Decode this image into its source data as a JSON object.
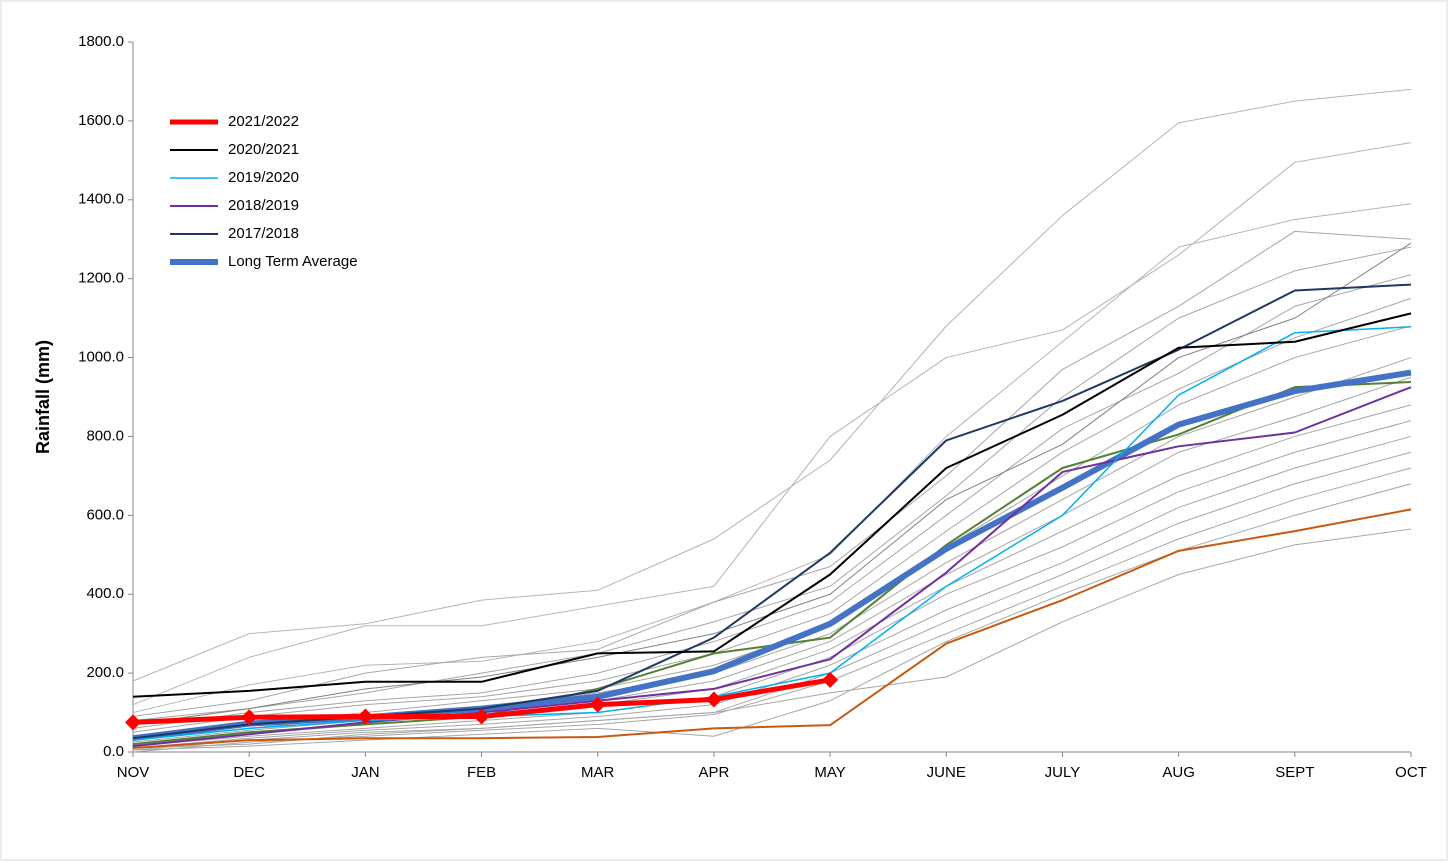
{
  "chart_data": {
    "type": "line",
    "y_label": "Rainfall (mm)",
    "categories": [
      "NOV",
      "DEC",
      "JAN",
      "FEB",
      "MAR",
      "APR",
      "MAY",
      "JUNE",
      "JULY",
      "AUG",
      "SEPT",
      "OCT"
    ],
    "ylim": [
      0,
      1800
    ],
    "yticks": [
      {
        "value": 0,
        "label": "0.0"
      },
      {
        "value": 200,
        "label": "200.0"
      },
      {
        "value": 400,
        "label": "400.0"
      },
      {
        "value": 600,
        "label": "600.0"
      },
      {
        "value": 800,
        "label": "800.0"
      },
      {
        "value": 1000,
        "label": "1000.0"
      },
      {
        "value": 1200,
        "label": "1200.0"
      },
      {
        "value": 1400,
        "label": "1400.0"
      },
      {
        "value": 1600,
        "label": "1600.0"
      },
      {
        "value": 1800,
        "label": "1800.0"
      }
    ],
    "grid": false,
    "legend": "upper left",
    "series": [
      {
        "color": "#b4b4b4",
        "width": 1,
        "values": [
          180,
          300,
          325,
          385,
          410,
          540,
          740,
          1080,
          1360,
          1595,
          1650,
          1680
        ]
      },
      {
        "color": "#b4b4b4",
        "width": 1,
        "values": [
          120,
          240,
          320,
          320,
          370,
          420,
          800,
          1000,
          1070,
          1260,
          1495,
          1545
        ]
      },
      {
        "color": "#b4b4b4",
        "width": 1,
        "values": [
          100,
          170,
          220,
          230,
          280,
          380,
          500,
          800,
          1040,
          1280,
          1350,
          1390
        ]
      },
      {
        "color": "#a6a6a6",
        "width": 1,
        "values": [
          90,
          130,
          200,
          240,
          260,
          380,
          470,
          700,
          970,
          1130,
          1320,
          1300
        ]
      },
      {
        "color": "#a6a6a6",
        "width": 1,
        "values": [
          80,
          110,
          150,
          200,
          250,
          330,
          420,
          650,
          900,
          1100,
          1220,
          1280
        ]
      },
      {
        "color": "#a6a6a6",
        "width": 1,
        "values": [
          60,
          100,
          130,
          150,
          200,
          280,
          380,
          600,
          820,
          960,
          1130,
          1210
        ]
      },
      {
        "color": "#a6a6a6",
        "width": 1,
        "values": [
          50,
          90,
          120,
          140,
          180,
          250,
          350,
          560,
          760,
          920,
          1050,
          1150
        ]
      },
      {
        "color": "#a6a6a6",
        "width": 1,
        "values": [
          40,
          70,
          100,
          130,
          160,
          220,
          320,
          520,
          700,
          880,
          1000,
          1080
        ]
      },
      {
        "color": "#a6a6a6",
        "width": 1,
        "values": [
          30,
          60,
          90,
          110,
          150,
          200,
          300,
          480,
          640,
          800,
          900,
          1000
        ]
      },
      {
        "color": "#a6a6a6",
        "width": 1,
        "values": [
          25,
          55,
          80,
          100,
          130,
          180,
          280,
          450,
          600,
          760,
          850,
          950
        ]
      },
      {
        "color": "#a6a6a6",
        "width": 1,
        "values": [
          20,
          45,
          70,
          90,
          120,
          160,
          260,
          420,
          560,
          700,
          800,
          880
        ]
      },
      {
        "color": "#a6a6a6",
        "width": 1,
        "values": [
          15,
          40,
          60,
          80,
          100,
          140,
          240,
          400,
          520,
          660,
          760,
          840
        ]
      },
      {
        "color": "#a6a6a6",
        "width": 1,
        "values": [
          10,
          35,
          55,
          70,
          90,
          120,
          220,
          360,
          480,
          620,
          720,
          800
        ]
      },
      {
        "color": "#a6a6a6",
        "width": 1,
        "values": [
          5,
          30,
          50,
          60,
          80,
          100,
          200,
          330,
          450,
          580,
          680,
          760
        ]
      },
      {
        "color": "#a6a6a6",
        "width": 1,
        "values": [
          0,
          25,
          40,
          55,
          70,
          95,
          180,
          300,
          420,
          540,
          640,
          720
        ]
      },
      {
        "color": "#a6a6a6",
        "width": 1,
        "values": [
          10,
          20,
          45,
          60,
          80,
          100,
          150,
          190,
          330,
          450,
          525,
          565
        ]
      },
      {
        "color": "#a6a6a6",
        "width": 1,
        "values": [
          5,
          15,
          30,
          45,
          60,
          40,
          130,
          280,
          400,
          510,
          600,
          680
        ]
      },
      {
        "color": "#808080",
        "width": 1,
        "values": [
          70,
          110,
          160,
          190,
          240,
          300,
          400,
          640,
          780,
          1000,
          1100,
          1290
        ]
      },
      {
        "color": "#c55a11",
        "width": 2,
        "values": [
          10,
          30,
          35,
          35,
          38,
          60,
          68,
          275,
          385,
          510,
          560,
          615
        ]
      },
      {
        "color": "#548235",
        "width": 2,
        "values": [
          20,
          50,
          70,
          90,
          160,
          250,
          290,
          525,
          720,
          805,
          925,
          938
        ]
      },
      {
        "name": "Long Term Average",
        "color": "#4472c4",
        "width": 6,
        "values": [
          35,
          72,
          88,
          110,
          140,
          205,
          325,
          515,
          670,
          830,
          915,
          962
        ]
      },
      {
        "name": "2017/2018",
        "color": "#203864",
        "width": 2,
        "values": [
          35,
          70,
          90,
          110,
          155,
          290,
          505,
          790,
          890,
          1020,
          1170,
          1185
        ]
      },
      {
        "name": "2018/2019",
        "color": "#7030a0",
        "width": 2,
        "values": [
          15,
          45,
          75,
          100,
          130,
          160,
          235,
          455,
          710,
          775,
          810,
          925
        ]
      },
      {
        "name": "2019/2020",
        "color": "#00b0f0",
        "width": 1.5,
        "values": [
          30,
          60,
          80,
          90,
          100,
          140,
          200,
          420,
          600,
          905,
          1063,
          1078
        ]
      },
      {
        "name": "2020/2021",
        "color": "#000000",
        "width": 2,
        "values": [
          140,
          155,
          178,
          178,
          250,
          255,
          450,
          720,
          855,
          1025,
          1040,
          1112
        ]
      },
      {
        "name": "2021/2022",
        "color": "#ff0000",
        "width": 5,
        "marker": "diamond",
        "values": [
          75,
          88,
          90,
          90,
          120,
          133,
          183,
          null,
          null,
          null,
          null,
          null
        ]
      }
    ]
  }
}
